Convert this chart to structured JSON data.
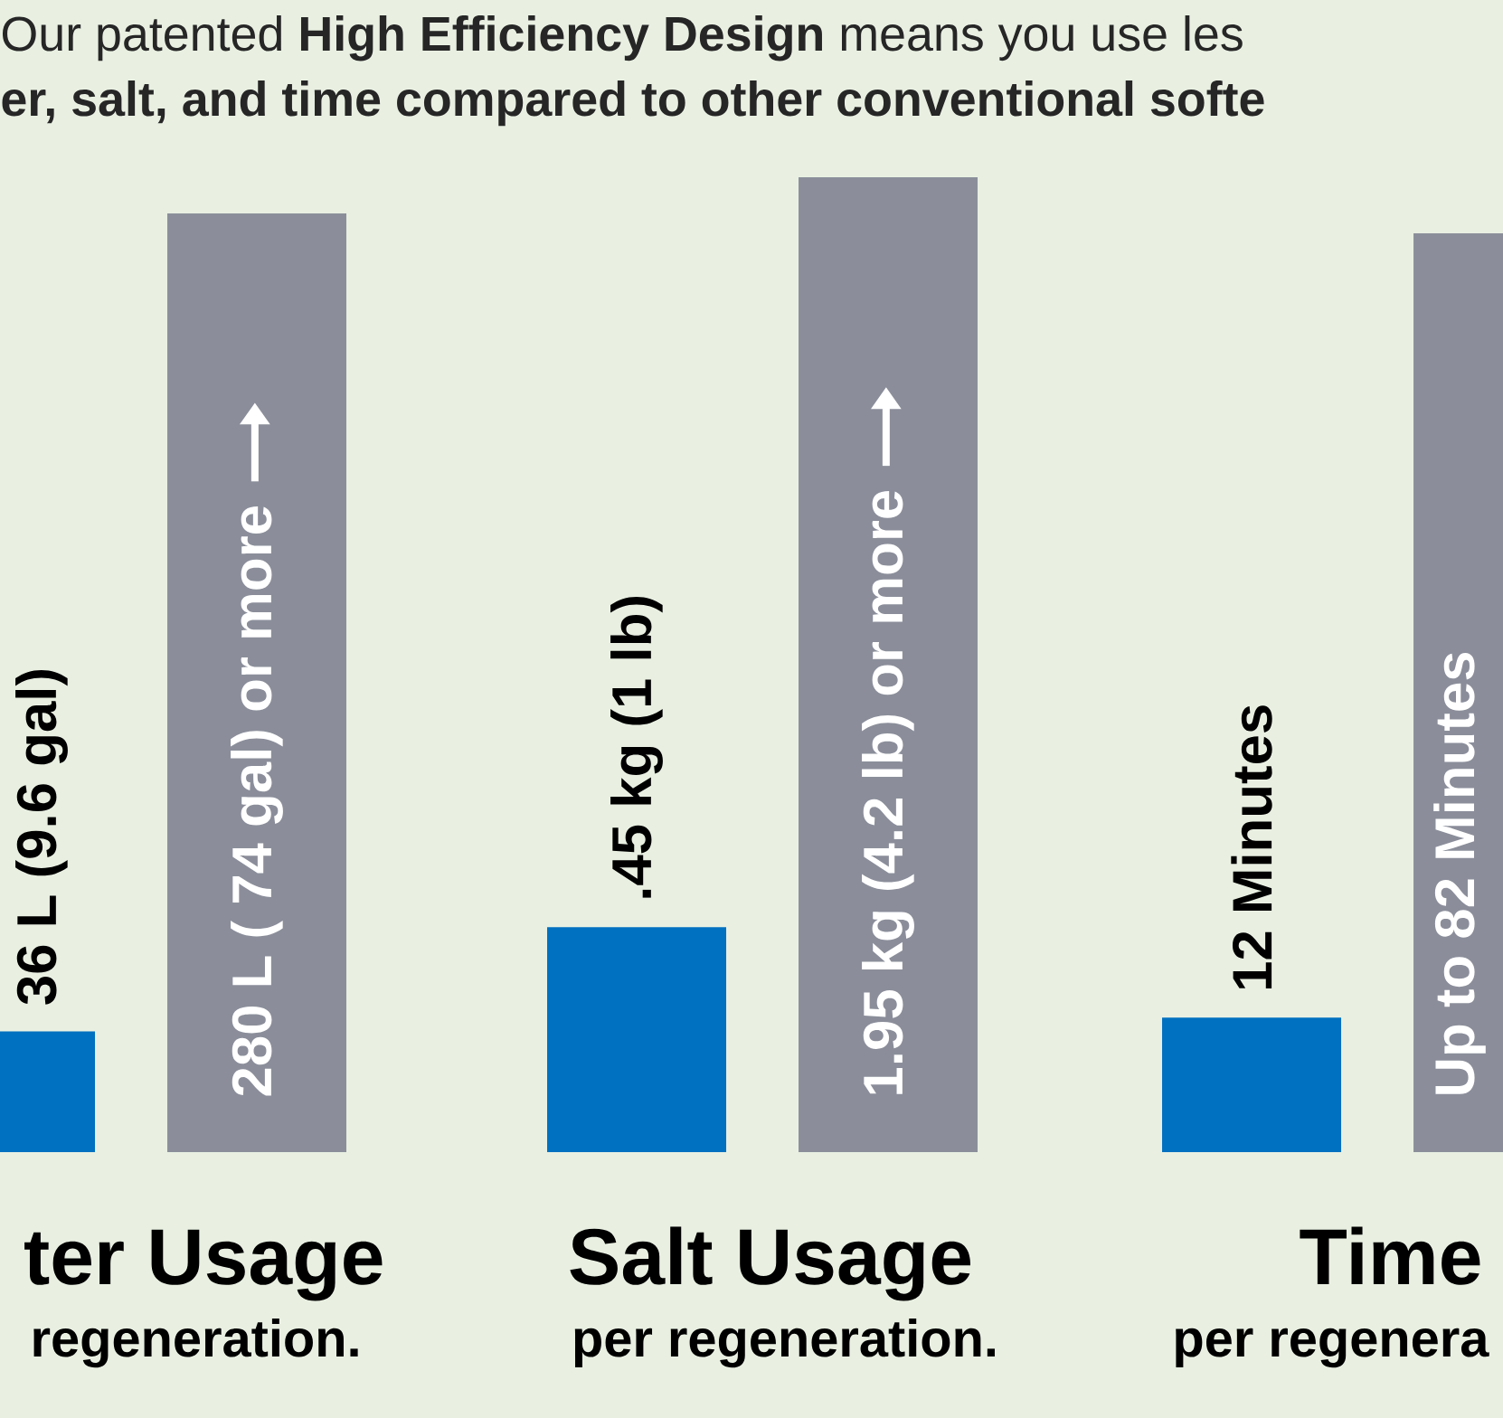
{
  "chart_data": [
    {
      "type": "bar",
      "title": "Our patented **High Efficiency Design** means you use les",
      "subtitle": "er, salt, and time compared to other conventional softe",
      "categories": [
        null,
        null
      ],
      "values": [
        36,
        280
      ],
      "colors": [
        "#0070c0",
        "#8b8e9a"
      ],
      "value_labels": [
        "36 L (9.6 gal)",
        "280 L ( 74 gal) or more"
      ],
      "xlabel": "ter Usage",
      "annotations": [
        "regeneration."
      ]
    },
    {
      "type": "bar",
      "categories": [
        null,
        null
      ],
      "values": [
        0.45,
        1.95
      ],
      "colors": [
        "#0070c0",
        "#8b8e9a"
      ],
      "value_labels": [
        ".45 kg (1 lb)",
        "1.95 kg (4.2 lb) or more"
      ],
      "xlabel": "Salt Usage",
      "annotations": [
        "per regeneration."
      ]
    },
    {
      "type": "bar",
      "categories": [
        null,
        null
      ],
      "values": [
        12,
        82
      ],
      "colors": [
        "#0070c0",
        "#8b8e9a"
      ],
      "value_labels": [
        "12 Minutes",
        "Up to 82 Minutes"
      ],
      "xlabel": "Time",
      "annotations": [
        "per regenera"
      ]
    }
  ]
}
